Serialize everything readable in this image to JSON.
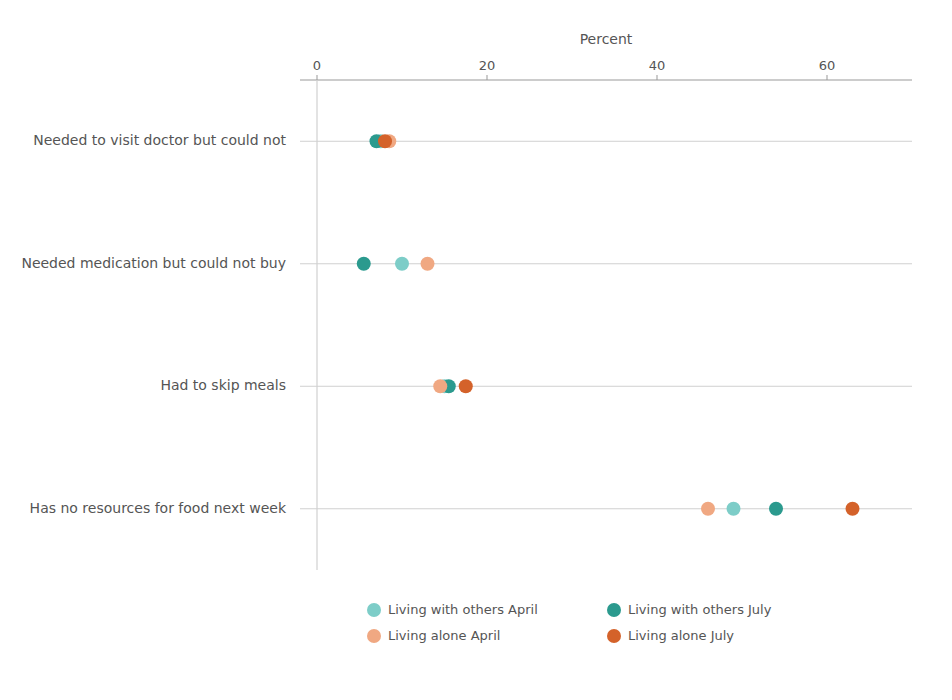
{
  "chart_data": {
    "type": "dot",
    "orientation": "horizontal",
    "xlabel": "Percent",
    "categories": [
      "Needed to visit doctor but could not",
      "Needed medication but could not buy",
      "Had to skip meals",
      "Has no resources for food next week"
    ],
    "series": [
      {
        "name": "Living with others April",
        "color": "#7DCDC8",
        "values": [
          7.5,
          10.0,
          15.0,
          49.0
        ]
      },
      {
        "name": "Living with others July",
        "color": "#2B9A8E",
        "values": [
          7.0,
          5.5,
          15.5,
          54.0
        ]
      },
      {
        "name": "Living alone April",
        "color": "#F0A882",
        "values": [
          8.5,
          13.0,
          14.5,
          46.0
        ]
      },
      {
        "name": "Living alone July",
        "color": "#D4622A",
        "values": [
          8.0,
          null,
          17.5,
          63.0
        ]
      }
    ],
    "xlim": [
      -2,
      70
    ],
    "xticks": [
      0,
      20,
      40,
      60
    ],
    "grid": true,
    "legend": "bottom"
  }
}
